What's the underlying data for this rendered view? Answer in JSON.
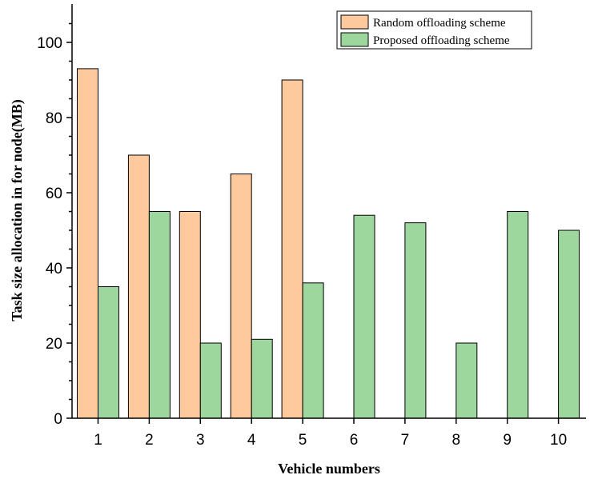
{
  "chart_data": {
    "type": "bar",
    "categories": [
      "1",
      "2",
      "3",
      "4",
      "5",
      "6",
      "7",
      "8",
      "9",
      "10"
    ],
    "series": [
      {
        "name": "Random offloading scheme",
        "color": "#fdc99d",
        "values": [
          93,
          70,
          55,
          65,
          90,
          null,
          null,
          null,
          null,
          null
        ]
      },
      {
        "name": "Proposed offloading scheme",
        "color": "#9ed79d",
        "values": [
          35,
          55,
          20,
          21,
          36,
          54,
          52,
          20,
          55,
          50
        ]
      }
    ],
    "xlabel": "Vehicle numbers",
    "ylabel": "Task size allocation in for node(MB)",
    "ylim": [
      0,
      110
    ],
    "yticks": [
      0,
      20,
      40,
      60,
      80,
      100
    ],
    "grid": false,
    "legend_position": "top-right"
  }
}
